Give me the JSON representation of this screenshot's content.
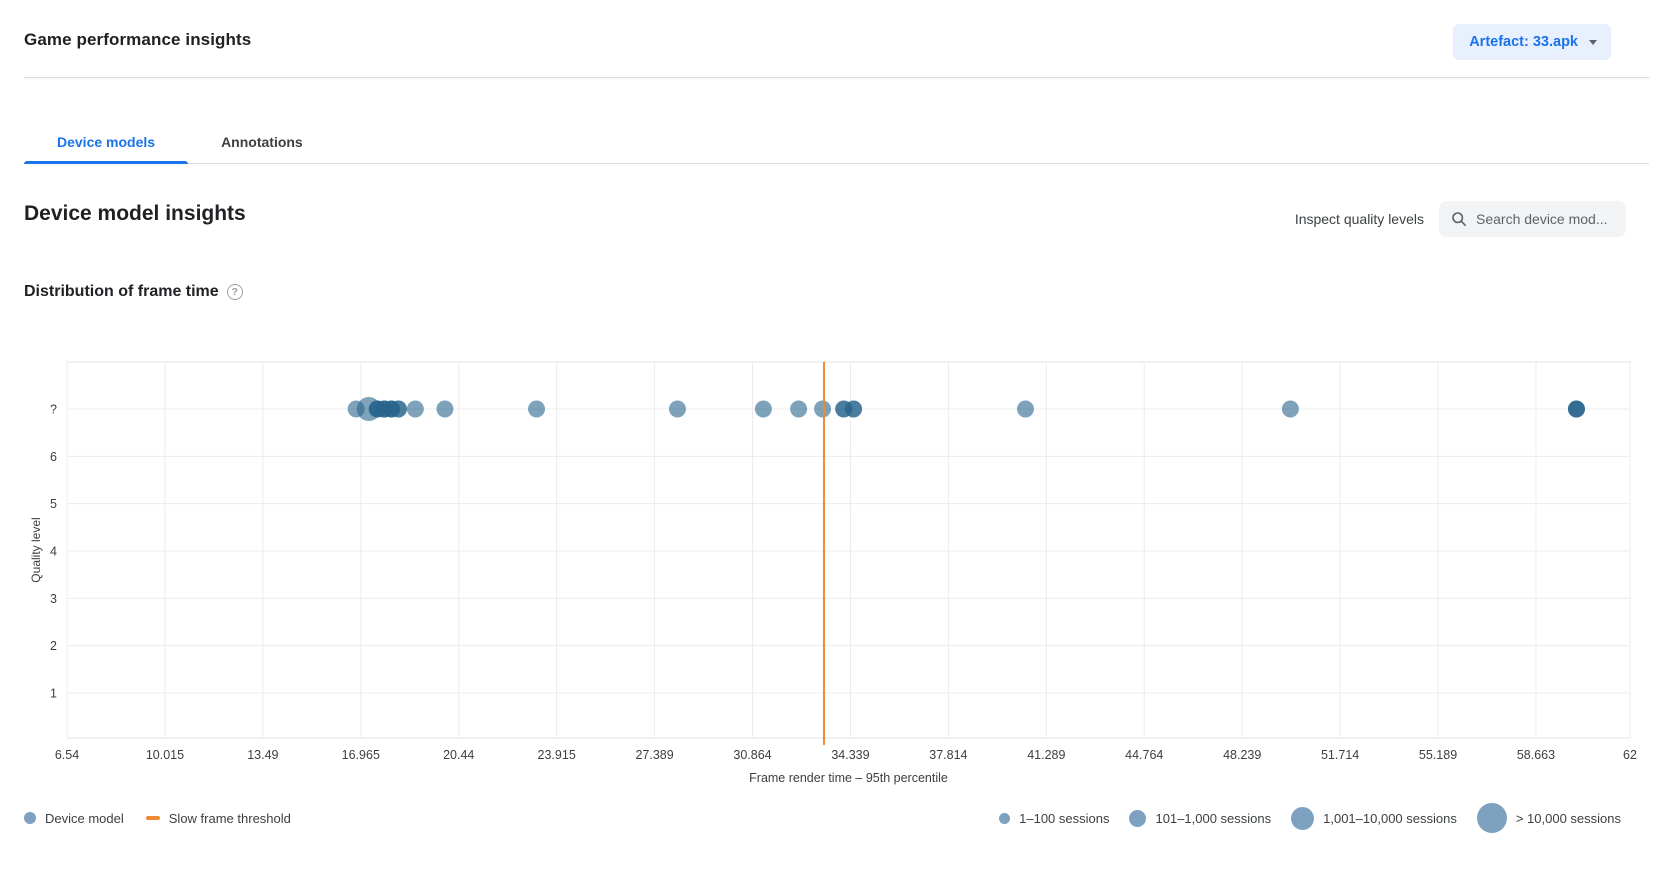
{
  "header": {
    "title": "Game performance insights",
    "artefact_button": {
      "label": "Artefact: 33.apk"
    }
  },
  "tabs": {
    "items": [
      {
        "label": "Device models",
        "active": true
      },
      {
        "label": "Annotations",
        "active": false
      }
    ]
  },
  "section": {
    "title": "Device model insights",
    "inspect_quality_levels_label": "Inspect quality levels",
    "search": {
      "placeholder": "Search device mod..."
    }
  },
  "chart": {
    "heading": "Distribution of frame time",
    "help_icon_glyph": "?"
  },
  "chart_data": {
    "type": "scatter",
    "title": "Distribution of frame time",
    "xlabel": "Frame render time – 95th percentile",
    "ylabel": "Quality level",
    "x_range": [
      6.54,
      62
    ],
    "x_ticks": [
      6.54,
      10.015,
      13.49,
      16.965,
      20.44,
      23.915,
      27.389,
      30.864,
      34.339,
      37.814,
      41.289,
      44.764,
      48.239,
      51.714,
      55.189,
      58.663,
      62
    ],
    "y_tick_labels": [
      "?",
      "6",
      "5",
      "4",
      "3",
      "2",
      "1"
    ],
    "grid": true,
    "slow_frame_threshold": 33.4,
    "points": [
      {
        "x": 16.8,
        "y": "?",
        "size": "101-1000",
        "overlap": 1
      },
      {
        "x": 17.25,
        "y": "?",
        "size": "1001-10000",
        "overlap": 1
      },
      {
        "x": 17.55,
        "y": "?",
        "size": "101-1000",
        "overlap": 3
      },
      {
        "x": 17.8,
        "y": "?",
        "size": "101-1000",
        "overlap": 3
      },
      {
        "x": 18.05,
        "y": "?",
        "size": "101-1000",
        "overlap": 3
      },
      {
        "x": 18.3,
        "y": "?",
        "size": "101-1000",
        "overlap": 2
      },
      {
        "x": 18.9,
        "y": "?",
        "size": "101-1000",
        "overlap": 1
      },
      {
        "x": 19.95,
        "y": "?",
        "size": "101-1000",
        "overlap": 1
      },
      {
        "x": 23.2,
        "y": "?",
        "size": "101-1000",
        "overlap": 1
      },
      {
        "x": 28.2,
        "y": "?",
        "size": "101-1000",
        "overlap": 1
      },
      {
        "x": 31.25,
        "y": "?",
        "size": "101-1000",
        "overlap": 1
      },
      {
        "x": 32.5,
        "y": "?",
        "size": "101-1000",
        "overlap": 1
      },
      {
        "x": 33.35,
        "y": "?",
        "size": "101-1000",
        "overlap": 1
      },
      {
        "x": 34.1,
        "y": "?",
        "size": "101-1000",
        "overlap": 2
      },
      {
        "x": 34.45,
        "y": "?",
        "size": "101-1000",
        "overlap": 2
      },
      {
        "x": 40.55,
        "y": "?",
        "size": "101-1000",
        "overlap": 1
      },
      {
        "x": 49.95,
        "y": "?",
        "size": "101-1000",
        "overlap": 1
      },
      {
        "x": 60.1,
        "y": "?",
        "size": "101-1000",
        "overlap": 3
      }
    ],
    "series_legend": [
      {
        "label": "Device model",
        "marker": "circle",
        "color": "#7da1bf"
      },
      {
        "label": "Slow frame threshold",
        "marker": "line",
        "color": "#ef8b33"
      }
    ],
    "size_legend": [
      {
        "label": "1–100 sessions"
      },
      {
        "label": "101–1,000 sessions"
      },
      {
        "label": "1,001–10,000 sessions"
      },
      {
        "label": "> 10,000 sessions"
      }
    ],
    "colors": {
      "point_base": "#28648c",
      "point_single": "#7da1bf",
      "threshold": "#ef8b33"
    }
  }
}
